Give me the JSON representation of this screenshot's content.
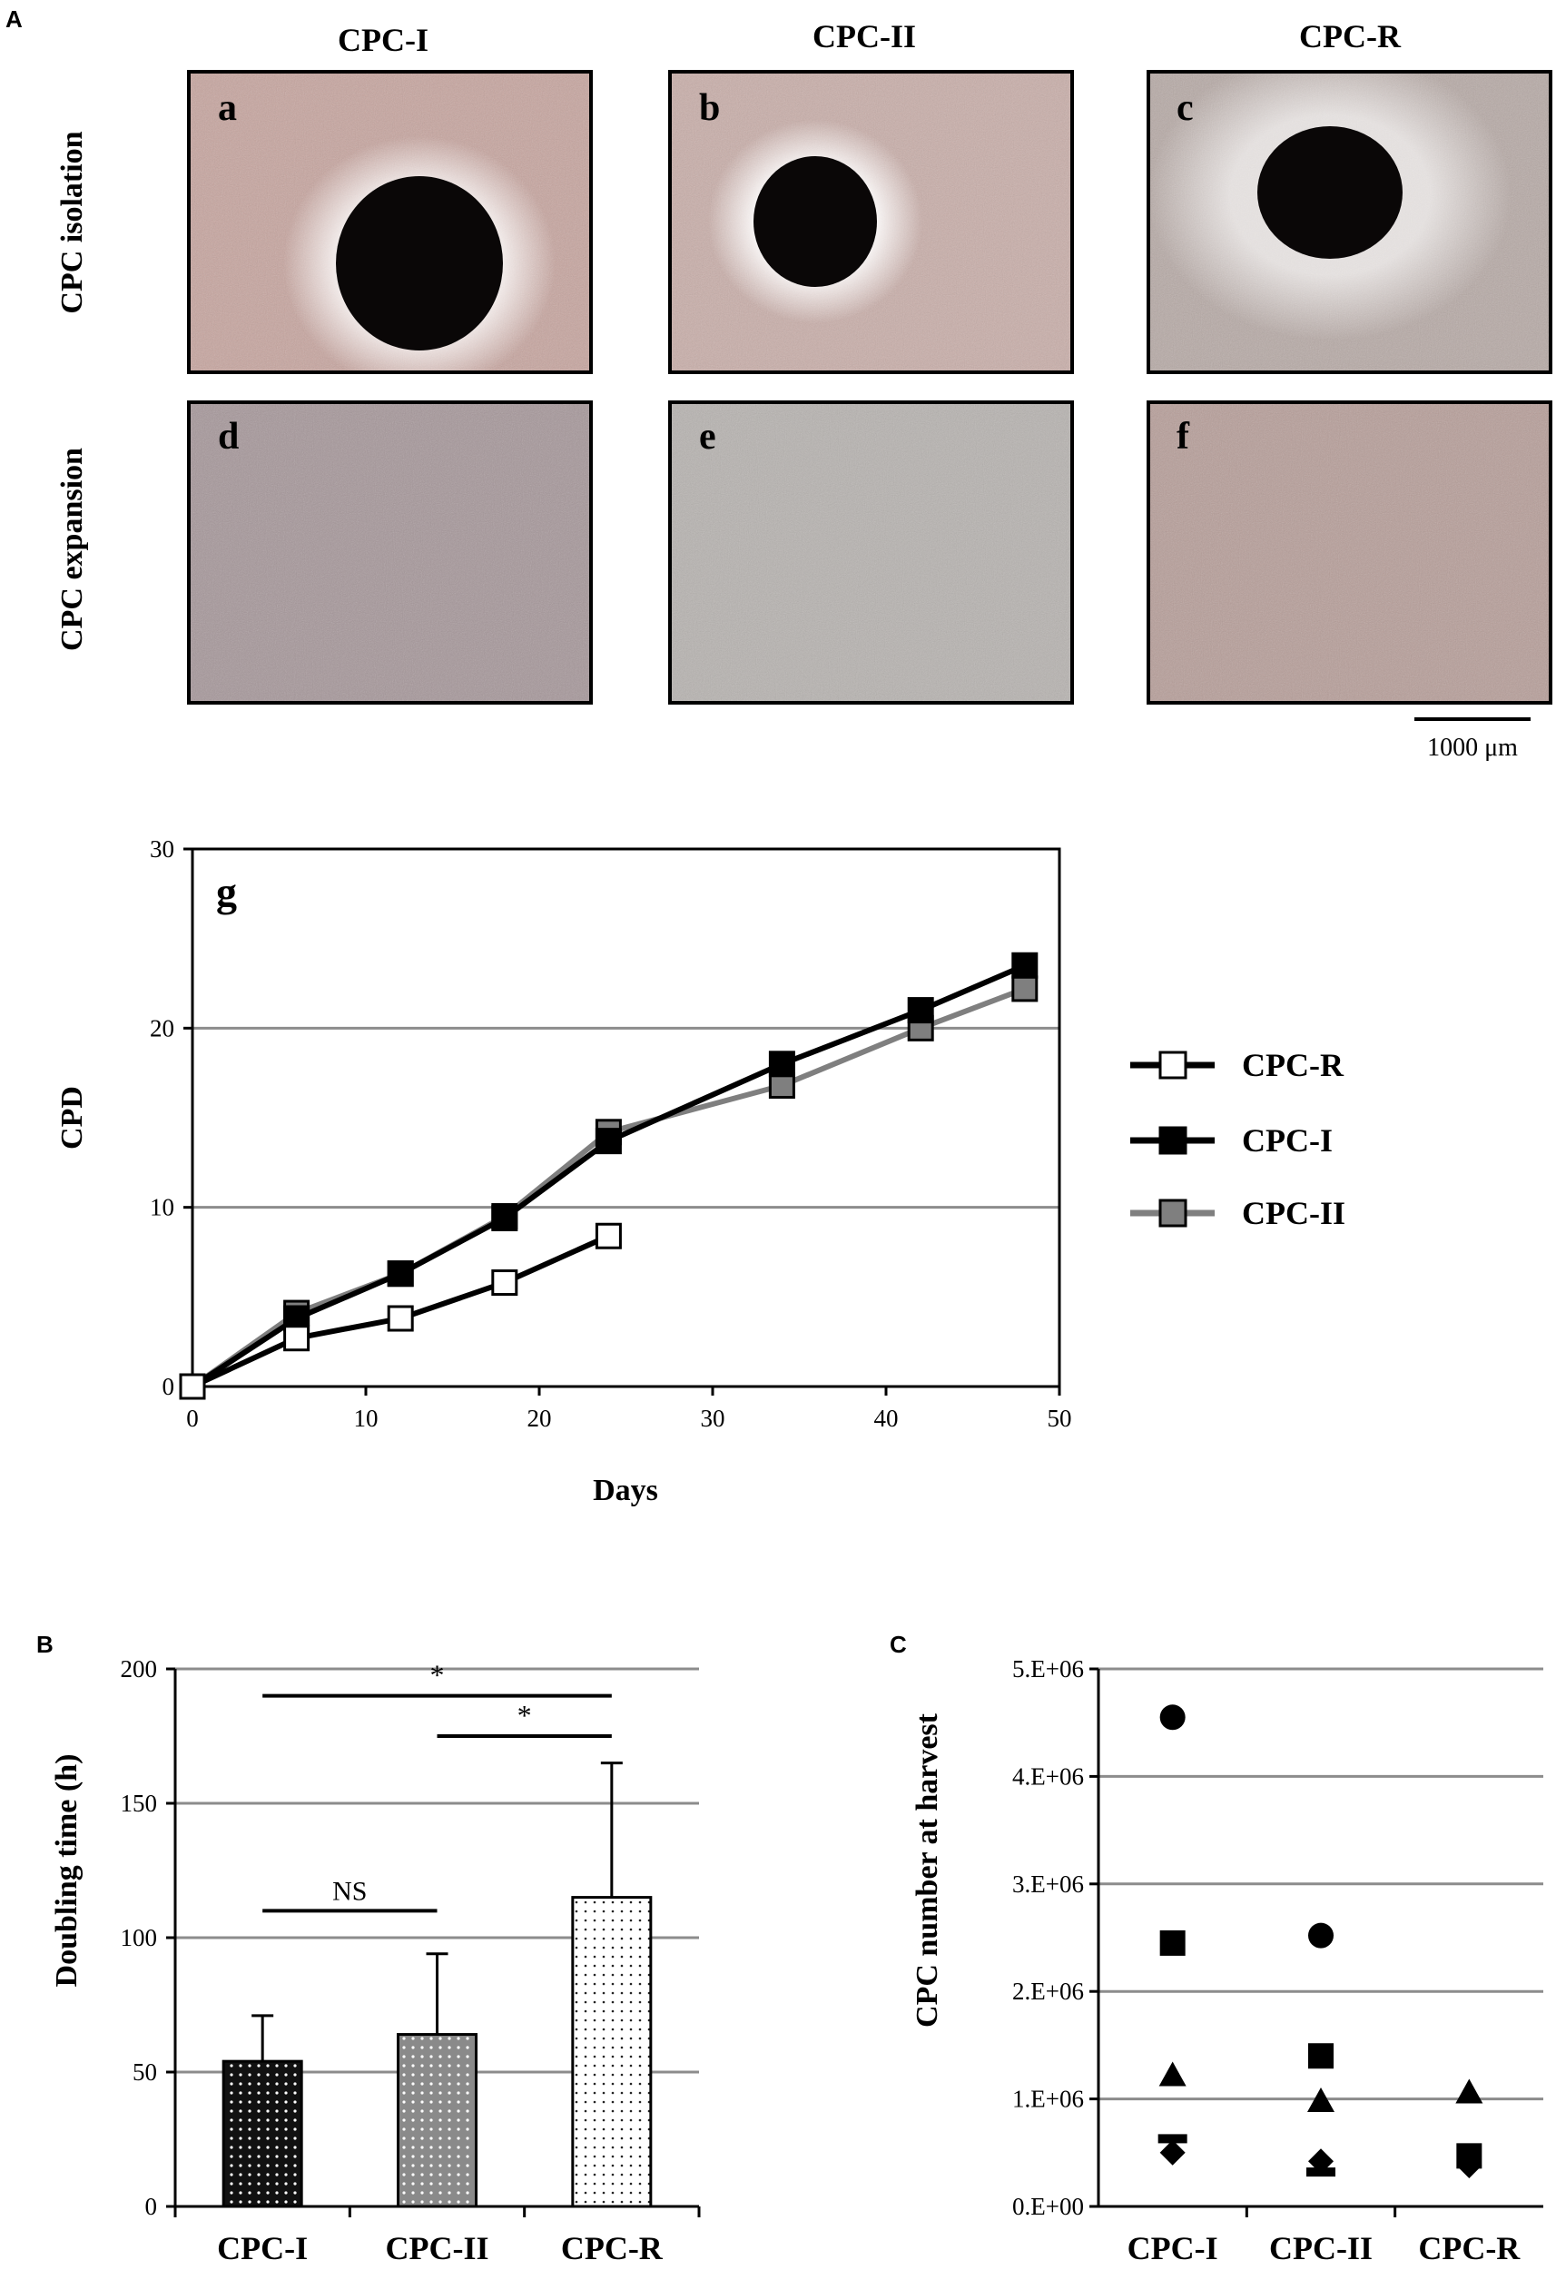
{
  "panel_labels": {
    "A": "A",
    "B": "B",
    "C": "C"
  },
  "micrographs": {
    "columns": [
      "CPC-I",
      "CPC-II",
      "CPC-R"
    ],
    "rows": [
      "CPC isolation",
      "CPC expansion"
    ],
    "letters": [
      "a",
      "b",
      "c",
      "d",
      "e",
      "f"
    ],
    "scale_bar": "1000 μm",
    "colors": {
      "isolation": [
        "#c7a59f",
        "#c9aea9",
        "#b7aaa6"
      ],
      "expansion": [
        "#a6979a",
        "#b7b3b0",
        "#b79e99"
      ]
    }
  },
  "chart_data": [
    {
      "type": "line",
      "panel_letter": "g",
      "xlabel": "Days",
      "ylabel": "CPD",
      "xlim": [
        0,
        50
      ],
      "ylim": [
        0,
        30
      ],
      "xticks": [
        0,
        10,
        20,
        30,
        40,
        50
      ],
      "yticks": [
        0,
        10,
        20,
        30
      ],
      "grid": "horizontal",
      "legend_position": "right",
      "series": [
        {
          "name": "CPC-R",
          "x": [
            0,
            6,
            12,
            18,
            24
          ],
          "y": [
            0,
            2.7,
            3.8,
            5.8,
            8.4
          ],
          "line": "#000000",
          "marker": "#ffffff"
        },
        {
          "name": "CPC-I",
          "x": [
            0,
            6,
            12,
            18,
            24,
            34,
            42,
            48
          ],
          "y": [
            0,
            3.8,
            6.3,
            9.4,
            13.7,
            18.0,
            21.0,
            23.5
          ],
          "line": "#000000",
          "marker": "#000000"
        },
        {
          "name": "CPC-II",
          "x": [
            0,
            6,
            12,
            18,
            24,
            34,
            42,
            48
          ],
          "y": [
            0,
            4.1,
            6.3,
            9.5,
            14.2,
            16.8,
            20.0,
            22.2
          ],
          "line": "#7f7f7f",
          "marker": "#7f7f7f"
        }
      ]
    },
    {
      "type": "bar",
      "categories": [
        "CPC-I",
        "CPC-II",
        "CPC-R"
      ],
      "values": [
        54,
        64,
        115
      ],
      "errors": [
        17,
        30,
        50
      ],
      "ylabel": "Doubling time (h)",
      "ylim": [
        0,
        200
      ],
      "yticks": [
        0,
        50,
        100,
        150,
        200
      ],
      "grid": "horizontal",
      "fills": [
        "#111111",
        "#8a8a8a",
        "#ffffff"
      ],
      "annotations": [
        {
          "text": "*",
          "from": "CPC-I",
          "to": "CPC-R",
          "y": 190
        },
        {
          "text": "*",
          "from": "CPC-II",
          "to": "CPC-R",
          "y": 175
        },
        {
          "text": "NS",
          "from": "CPC-I",
          "to": "CPC-II",
          "y": 110
        }
      ]
    },
    {
      "type": "scatter",
      "categories": [
        "CPC-I",
        "CPC-II",
        "CPC-R"
      ],
      "ylabel": "CPC number at harvest",
      "ylim": [
        0,
        5000000
      ],
      "yticks": [
        "0.E+00",
        "1.E+06",
        "2.E+06",
        "3.E+06",
        "4.E+06",
        "5.E+06"
      ],
      "grid": "horizontal",
      "points": [
        {
          "category": "CPC-I",
          "value": 4550000,
          "marker": "circle"
        },
        {
          "category": "CPC-I",
          "value": 2450000,
          "marker": "square"
        },
        {
          "category": "CPC-I",
          "value": 1220000,
          "marker": "triangle"
        },
        {
          "category": "CPC-I",
          "value": 630000,
          "marker": "dash"
        },
        {
          "category": "CPC-I",
          "value": 500000,
          "marker": "diamond"
        },
        {
          "category": "CPC-II",
          "value": 2520000,
          "marker": "circle"
        },
        {
          "category": "CPC-II",
          "value": 1400000,
          "marker": "square"
        },
        {
          "category": "CPC-II",
          "value": 980000,
          "marker": "triangle"
        },
        {
          "category": "CPC-II",
          "value": 420000,
          "marker": "diamond"
        },
        {
          "category": "CPC-II",
          "value": 320000,
          "marker": "dash"
        },
        {
          "category": "CPC-R",
          "value": 1060000,
          "marker": "triangle"
        },
        {
          "category": "CPC-R",
          "value": 470000,
          "marker": "square"
        },
        {
          "category": "CPC-R",
          "value": 380000,
          "marker": "diamond"
        }
      ]
    }
  ]
}
